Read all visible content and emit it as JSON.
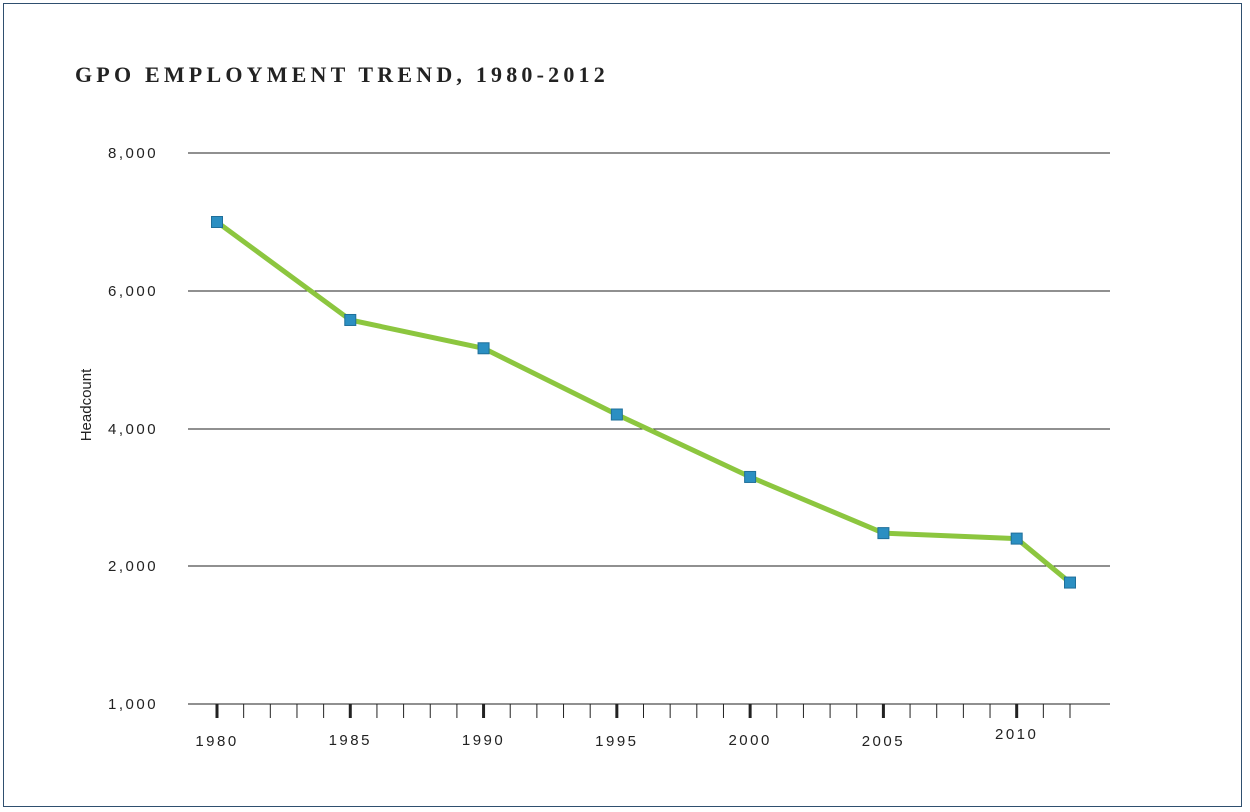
{
  "chart_data": {
    "type": "line",
    "title": "GPO EMPLOYMENT TREND, 1980-2012",
    "xlabel": "",
    "ylabel": "Headcount",
    "x": [
      1980,
      1985,
      1990,
      1995,
      2000,
      2005,
      2010,
      2012
    ],
    "series": [
      {
        "name": "",
        "values": [
          7000,
          5580,
          5170,
          4210,
          3300,
          2480,
          2400,
          1880
        ]
      }
    ],
    "y_ticks": [
      1000,
      2000,
      4000,
      6000,
      8000
    ],
    "y_tick_labels": [
      "1,000",
      "2,000",
      "4,000",
      "6,000",
      "8,000"
    ],
    "x_tick_labels": [
      "1980",
      "1985",
      "1990",
      "1995",
      "2000",
      "2005",
      "2010"
    ],
    "xlim": [
      1979,
      2013
    ],
    "ylim": [
      1000,
      8000
    ],
    "grid": true,
    "legend": "none",
    "colors": {
      "line": "#8cc63f",
      "marker": "#2b8fc2",
      "marker_edge": "#1f6f9a",
      "grid": "#222222",
      "text": "#222222",
      "frame": "#2f4f6f"
    }
  }
}
